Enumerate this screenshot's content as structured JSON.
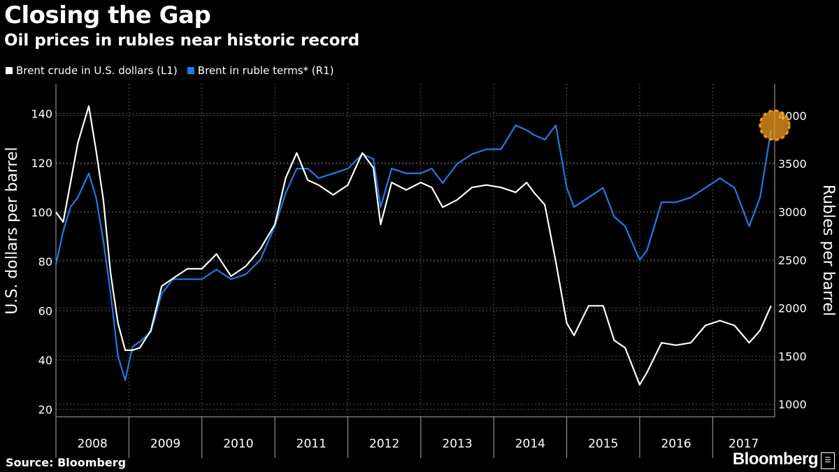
{
  "title": "Closing the Gap",
  "subtitle": "Oil prices in rubles near historic record",
  "source": "Source: Bloomberg",
  "brand": "Bloomberg",
  "colors": {
    "background": "#000000",
    "usd_series": "#ffffff",
    "rub_series": "#1f7be6",
    "highlight": "#f29a1f",
    "grid": "#555555"
  },
  "chart_data": {
    "type": "line",
    "grid": true,
    "legend_placement": "top-left",
    "x_ticks": [
      "2008",
      "2009",
      "2010",
      "2011",
      "2012",
      "2013",
      "2014",
      "2015",
      "2016",
      "2017"
    ],
    "x_range": [
      2008.0,
      2017.85
    ],
    "y_left": {
      "label": "U.S. dollars per barrel",
      "ticks": [
        20,
        40,
        60,
        80,
        100,
        120,
        140
      ],
      "range": [
        17,
        152
      ]
    },
    "y_right": {
      "label": "Rubles per barrel",
      "ticks": [
        1000,
        1500,
        2000,
        2500,
        3000,
        3500,
        4000
      ],
      "range": [
        870,
        4330
      ]
    },
    "series": [
      {
        "name": "Brent crude in U.S. dollars (L1)",
        "axis": "left",
        "x": [
          2008.0,
          2008.1,
          2008.2,
          2008.3,
          2008.45,
          2008.55,
          2008.65,
          2008.75,
          2008.85,
          2008.95,
          2009.05,
          2009.15,
          2009.3,
          2009.45,
          2009.6,
          2009.8,
          2010.0,
          2010.2,
          2010.4,
          2010.6,
          2010.8,
          2011.0,
          2011.15,
          2011.3,
          2011.45,
          2011.6,
          2011.8,
          2012.0,
          2012.2,
          2012.35,
          2012.45,
          2012.6,
          2012.8,
          2013.0,
          2013.15,
          2013.3,
          2013.5,
          2013.7,
          2013.9,
          2014.1,
          2014.3,
          2014.45,
          2014.55,
          2014.7,
          2014.85,
          2015.0,
          2015.1,
          2015.3,
          2015.5,
          2015.65,
          2015.8,
          2016.0,
          2016.1,
          2016.3,
          2016.5,
          2016.7,
          2016.9,
          2017.1,
          2017.3,
          2017.5,
          2017.65,
          2017.8
        ],
        "y": [
          100,
          96,
          112,
          128,
          143,
          125,
          105,
          75,
          55,
          44,
          44,
          45,
          52,
          70,
          73,
          77,
          77,
          83,
          74,
          78,
          85,
          95,
          114,
          124,
          113,
          111,
          107,
          111,
          124,
          118,
          95,
          112,
          109,
          112,
          110,
          102,
          105,
          110,
          111,
          110,
          108,
          112,
          108,
          103,
          80,
          55,
          50,
          62,
          62,
          48,
          45,
          30,
          35,
          47,
          46,
          47,
          54,
          56,
          54,
          47,
          52,
          62
        ]
      },
      {
        "name": "Brent in ruble terms* (R1)",
        "axis": "right",
        "x": [
          2008.0,
          2008.1,
          2008.2,
          2008.3,
          2008.45,
          2008.55,
          2008.65,
          2008.75,
          2008.85,
          2008.95,
          2009.05,
          2009.15,
          2009.3,
          2009.45,
          2009.6,
          2009.8,
          2010.0,
          2010.2,
          2010.4,
          2010.6,
          2010.8,
          2011.0,
          2011.15,
          2011.3,
          2011.45,
          2011.6,
          2011.8,
          2012.0,
          2012.2,
          2012.35,
          2012.45,
          2012.6,
          2012.8,
          2013.0,
          2013.15,
          2013.3,
          2013.5,
          2013.7,
          2013.9,
          2014.1,
          2014.3,
          2014.45,
          2014.55,
          2014.7,
          2014.85,
          2015.0,
          2015.1,
          2015.3,
          2015.5,
          2015.65,
          2015.8,
          2016.0,
          2016.1,
          2016.3,
          2016.5,
          2016.7,
          2016.9,
          2017.1,
          2017.3,
          2017.5,
          2017.65,
          2017.8
        ],
        "y": [
          2450,
          2800,
          3050,
          3150,
          3400,
          3150,
          2700,
          2150,
          1500,
          1250,
          1600,
          1650,
          1750,
          2150,
          2300,
          2300,
          2300,
          2400,
          2300,
          2350,
          2500,
          2850,
          3200,
          3450,
          3450,
          3350,
          3400,
          3450,
          3600,
          3550,
          3050,
          3450,
          3400,
          3400,
          3450,
          3300,
          3500,
          3600,
          3650,
          3650,
          3900,
          3850,
          3800,
          3750,
          3900,
          3250,
          3050,
          3150,
          3250,
          2950,
          2850,
          2500,
          2600,
          3100,
          3100,
          3150,
          3250,
          3350,
          3250,
          2850,
          3150,
          3850
        ]
      }
    ],
    "highlight": {
      "x": 2017.85,
      "y_right": 3900
    }
  }
}
